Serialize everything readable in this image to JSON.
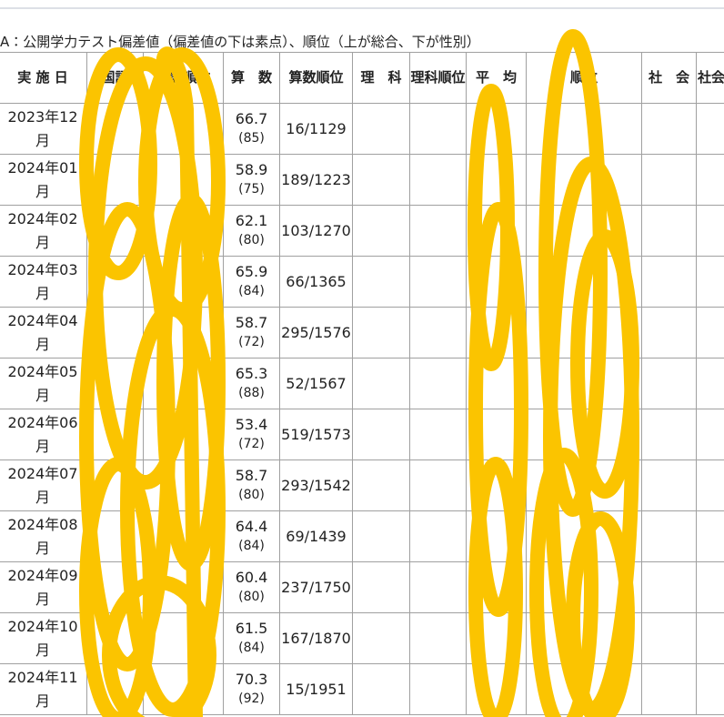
{
  "title": "A：公開学力テスト偏差値（偏差値の下は素点）、順位（上が総合、下が性別）",
  "table": {
    "headers": [
      "実 施 日",
      "国語",
      "国語順位",
      "算　数",
      "算数順位",
      "理　科",
      "理科順位",
      "平　均",
      "順位",
      "社　会",
      "社会順位"
    ],
    "rows": [
      {
        "date": "2023年12月",
        "math": "66.7",
        "math_score": "(85)",
        "math_rank": "16/1129"
      },
      {
        "date": "2024年01月",
        "math": "58.9",
        "math_score": "(75)",
        "math_rank": "189/1223"
      },
      {
        "date": "2024年02月",
        "math": "62.1",
        "math_score": "(80)",
        "math_rank": "103/1270"
      },
      {
        "date": "2024年03月",
        "math": "65.9",
        "math_score": "(84)",
        "math_rank": "66/1365"
      },
      {
        "date": "2024年04月",
        "math": "58.7",
        "math_score": "(72)",
        "math_rank": "295/1576"
      },
      {
        "date": "2024年05月",
        "math": "65.3",
        "math_score": "(88)",
        "math_rank": "52/1567"
      },
      {
        "date": "2024年06月",
        "math": "53.4",
        "math_score": "(72)",
        "math_rank": "519/1573"
      },
      {
        "date": "2024年07月",
        "math": "58.7",
        "math_score": "(80)",
        "math_rank": "293/1542"
      },
      {
        "date": "2024年08月",
        "math": "64.4",
        "math_score": "(84)",
        "math_rank": "69/1439"
      },
      {
        "date": "2024年09月",
        "math": "60.4",
        "math_score": "(80)",
        "math_rank": "237/1750"
      },
      {
        "date": "2024年10月",
        "math": "61.5",
        "math_score": "(84)",
        "math_rank": "167/1870"
      },
      {
        "date": "2024年11月",
        "math": "70.3",
        "math_score": "(92)",
        "math_rank": "15/1951"
      }
    ]
  }
}
